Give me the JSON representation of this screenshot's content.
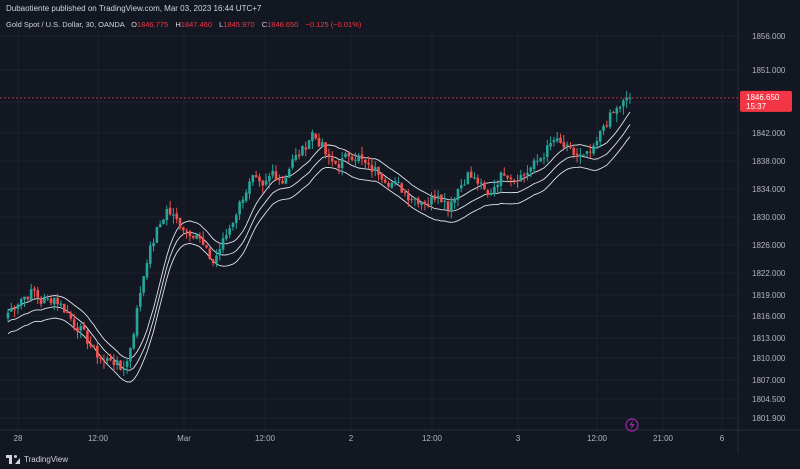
{
  "header": {
    "publisher_line": "Dubaotiente published on TradingView.com, Mar 03, 2023 16:44 UTC+7",
    "symbol": "Gold Spot / U.S. Dollar, 30, OANDA",
    "o_label": "O",
    "o_value": "1846.775",
    "h_label": "H",
    "h_value": "1847.460",
    "l_label": "L",
    "l_value": "1845.970",
    "c_label": "C",
    "c_value": "1846.650",
    "change": "−0.125 (−0.01%)"
  },
  "price_tag": {
    "price": "1846.650",
    "countdown": "15:37"
  },
  "footer": {
    "brand": "TradingView"
  },
  "colors": {
    "background": "#131722",
    "grid": "#1e222d",
    "up": "#26a69a",
    "down": "#ef5350",
    "band": "#e0e3eb",
    "tag": "#f23645",
    "axis_text": "#b2b5be",
    "event_icon": "#9c27b0"
  },
  "chart_data": {
    "type": "candlestick",
    "title": "Gold Spot / U.S. Dollar, 30, OANDA",
    "xlabel": "",
    "ylabel": "",
    "ylim": [
      1800.2,
      1857.7
    ],
    "y_ticks": [
      "1856.000",
      "1851.000",
      "1846.000",
      "1842.000",
      "1838.000",
      "1834.000",
      "1830.000",
      "1826.000",
      "1822.000",
      "1819.000",
      "1816.000",
      "1813.000",
      "1810.000",
      "1807.000",
      "1804.500",
      "1801.900"
    ],
    "x_ticks": [
      "28",
      "12:00",
      "Mar",
      "12:00",
      "2",
      "12:00",
      "3",
      "12:00",
      "21:00",
      "6"
    ],
    "last_price": 1846.65,
    "close_path": [
      [
        0,
        1816.5
      ],
      [
        4,
        1818.5
      ],
      [
        8,
        1819.5
      ],
      [
        10,
        1818.0
      ],
      [
        14,
        1818.6
      ],
      [
        17,
        1817.0
      ],
      [
        20,
        1815.0
      ],
      [
        23,
        1813.5
      ],
      [
        26,
        1811.0
      ],
      [
        29,
        1809.5
      ],
      [
        31,
        1810.0
      ],
      [
        34,
        1808.5
      ],
      [
        36,
        1809.5
      ],
      [
        38,
        1814.0
      ],
      [
        40,
        1819.5
      ],
      [
        42,
        1824.0
      ],
      [
        45,
        1828.0
      ],
      [
        48,
        1831.0
      ],
      [
        51,
        1829.5
      ],
      [
        54,
        1828.0
      ],
      [
        57,
        1827.5
      ],
      [
        60,
        1825.0
      ],
      [
        62,
        1823.5
      ],
      [
        65,
        1826.5
      ],
      [
        68,
        1829.5
      ],
      [
        71,
        1833.0
      ],
      [
        74,
        1835.5
      ],
      [
        77,
        1834.0
      ],
      [
        80,
        1836.5
      ],
      [
        83,
        1835.0
      ],
      [
        86,
        1838.0
      ],
      [
        89,
        1839.5
      ],
      [
        92,
        1842.0
      ],
      [
        95,
        1840.0
      ],
      [
        97,
        1838.0
      ],
      [
        100,
        1837.5
      ],
      [
        103,
        1839.0
      ],
      [
        106,
        1838.5
      ],
      [
        109,
        1837.0
      ],
      [
        112,
        1836.5
      ],
      [
        115,
        1835.0
      ],
      [
        118,
        1834.5
      ],
      [
        121,
        1833.0
      ],
      [
        124,
        1832.5
      ],
      [
        127,
        1832.0
      ],
      [
        130,
        1833.5
      ],
      [
        133,
        1831.5
      ],
      [
        136,
        1834.0
      ],
      [
        139,
        1836.0
      ],
      [
        142,
        1835.0
      ],
      [
        145,
        1833.0
      ],
      [
        147,
        1834.5
      ],
      [
        150,
        1836.5
      ],
      [
        153,
        1835.5
      ],
      [
        156,
        1836.0
      ],
      [
        159,
        1837.5
      ],
      [
        162,
        1839.0
      ],
      [
        165,
        1841.0
      ],
      [
        168,
        1840.0
      ],
      [
        171,
        1839.0
      ],
      [
        174,
        1838.5
      ],
      [
        177,
        1839.5
      ],
      [
        180,
        1843.0
      ],
      [
        182,
        1844.0
      ],
      [
        185,
        1845.5
      ],
      [
        188,
        1846.65
      ]
    ],
    "series": [
      {
        "values_ref": "close_path",
        "style": "candles",
        "up_color": "#26a69a",
        "down_color": "#ef5350"
      },
      {
        "style": "band",
        "color": "#e0e3eb",
        "offsets": [
          -1.6,
          0,
          1.6
        ]
      }
    ],
    "grid": true,
    "legend": "none"
  }
}
